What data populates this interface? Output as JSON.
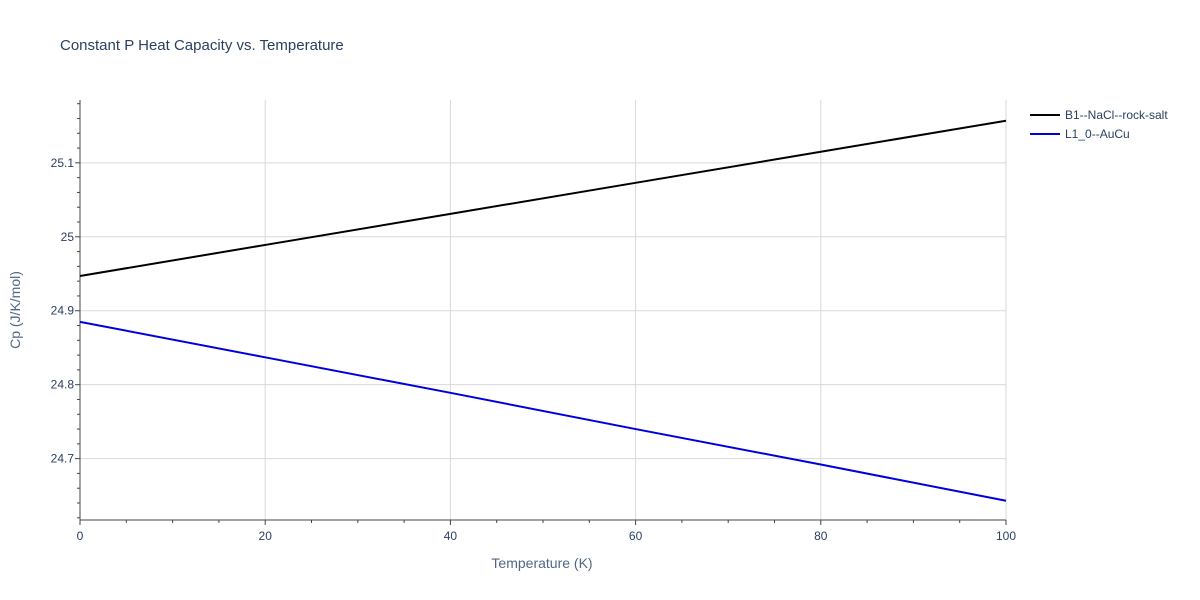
{
  "chart_data": {
    "type": "line",
    "title": "Constant P Heat Capacity vs. Temperature",
    "xlabel": "Temperature (K)",
    "ylabel": "Cp (J/K/mol)",
    "xlim": [
      0,
      100
    ],
    "ylim": [
      24.617,
      25.185
    ],
    "x_ticks": [
      0,
      20,
      40,
      60,
      80,
      100
    ],
    "y_ticks": [
      24.7,
      24.8,
      24.9,
      25,
      25.1
    ],
    "x_tick_labels": [
      "0",
      "20",
      "40",
      "60",
      "80",
      "100"
    ],
    "y_tick_labels": [
      "24.7",
      "24.8",
      "24.9",
      "25",
      "25.1"
    ],
    "grid": true,
    "legend": "top-right, outside plot",
    "series": [
      {
        "name": "B1--NaCl--rock-salt",
        "color": "#000000",
        "x": [
          0,
          20,
          40,
          60,
          80,
          100
        ],
        "y": [
          24.947,
          24.989,
          25.031,
          25.073,
          25.115,
          25.157
        ]
      },
      {
        "name": "L1_0--AuCu",
        "color": "#0000dd",
        "x": [
          0,
          20,
          40,
          60,
          80,
          100
        ],
        "y": [
          24.885,
          24.837,
          24.789,
          24.74,
          24.692,
          24.643
        ]
      }
    ]
  }
}
